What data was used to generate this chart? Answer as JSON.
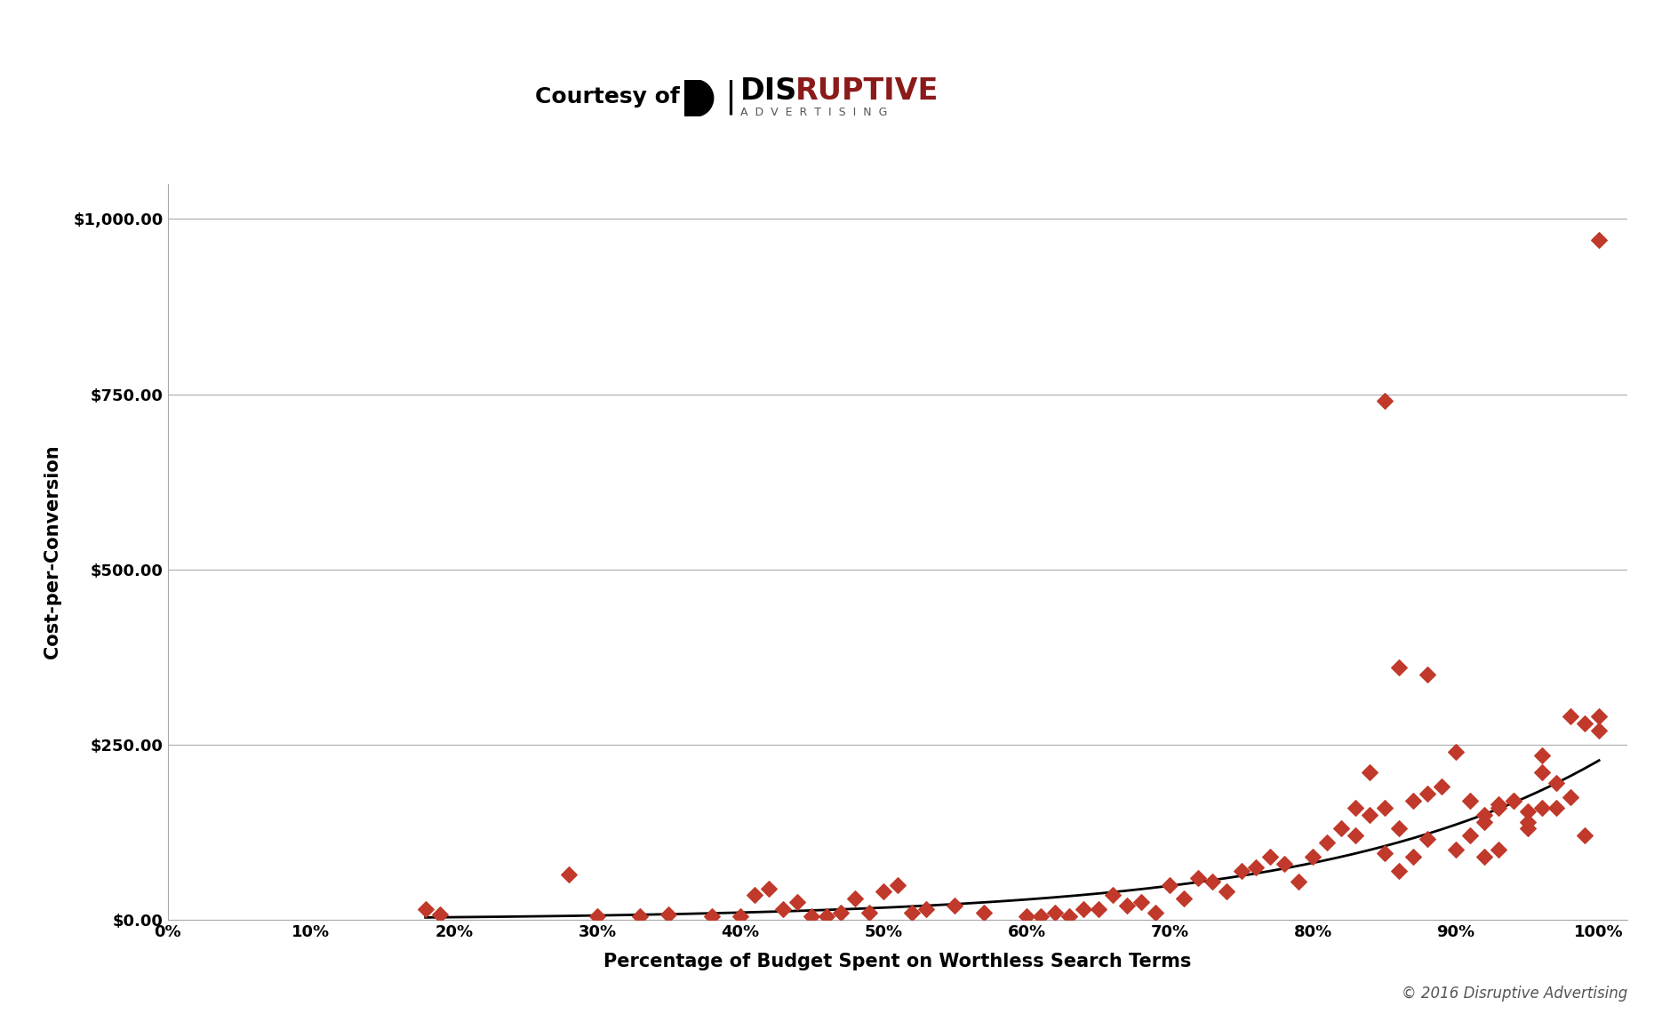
{
  "scatter_x": [
    0.18,
    0.19,
    0.28,
    0.3,
    0.33,
    0.35,
    0.38,
    0.4,
    0.41,
    0.42,
    0.43,
    0.44,
    0.45,
    0.46,
    0.47,
    0.48,
    0.49,
    0.5,
    0.51,
    0.52,
    0.53,
    0.55,
    0.57,
    0.6,
    0.61,
    0.62,
    0.63,
    0.64,
    0.65,
    0.66,
    0.67,
    0.68,
    0.69,
    0.7,
    0.71,
    0.72,
    0.73,
    0.74,
    0.75,
    0.76,
    0.77,
    0.78,
    0.79,
    0.8,
    0.81,
    0.82,
    0.83,
    0.84,
    0.85,
    0.86,
    0.87,
    0.88,
    0.89,
    0.9,
    0.91,
    0.92,
    0.93,
    0.94,
    0.95,
    0.96,
    0.97,
    0.98,
    0.99,
    1.0,
    0.85,
    0.86,
    0.88,
    0.9,
    0.91,
    0.92,
    0.93,
    0.94,
    0.95,
    0.96,
    0.97,
    0.98,
    0.99,
    1.0,
    0.83,
    0.84,
    0.85,
    0.86,
    0.87,
    0.88,
    0.92,
    0.93,
    0.95,
    0.96,
    1.0
  ],
  "scatter_y": [
    15,
    8,
    65,
    5,
    5,
    8,
    5,
    5,
    35,
    45,
    15,
    25,
    5,
    5,
    10,
    30,
    10,
    40,
    50,
    10,
    15,
    20,
    10,
    5,
    5,
    10,
    5,
    15,
    15,
    35,
    20,
    25,
    10,
    50,
    30,
    60,
    55,
    40,
    70,
    75,
    90,
    80,
    55,
    90,
    110,
    130,
    120,
    150,
    160,
    130,
    170,
    180,
    190,
    100,
    120,
    150,
    160,
    170,
    140,
    160,
    160,
    175,
    120,
    970,
    740,
    360,
    350,
    240,
    170,
    140,
    165,
    170,
    155,
    210,
    195,
    290,
    280,
    290,
    160,
    210,
    95,
    70,
    90,
    115,
    90,
    100,
    130,
    235,
    270
  ],
  "trend_x_start": 0.18,
  "trend_x_end": 1.0,
  "scatter_color": "#C0392B",
  "trend_color": "#000000",
  "marker": "D",
  "xlabel": "Percentage of Budget Spent on Worthless Search Terms",
  "ylabel": "Cost-per-Conversion",
  "yticks": [
    0,
    250,
    500,
    750,
    1000
  ],
  "ytick_labels": [
    "$0.00",
    "$250.00",
    "$500.00",
    "$750.00",
    "$1,000.00"
  ],
  "xticks": [
    0.0,
    0.1,
    0.2,
    0.3,
    0.4,
    0.5,
    0.6,
    0.7,
    0.8,
    0.9,
    1.0
  ],
  "xtick_labels": [
    "0%",
    "10%",
    "20%",
    "30%",
    "40%",
    "50%",
    "60%",
    "70%",
    "80%",
    "90%",
    "100%"
  ],
  "xlim": [
    0.0,
    1.02
  ],
  "ylim": [
    0,
    1050
  ],
  "copyright_text": "© 2016 Disruptive Advertising",
  "background_color": "#ffffff",
  "grid_color": "#aaaaaa",
  "font_color": "#000000",
  "dis_color": "#000000",
  "ruptive_color": "#8B1A1A",
  "advertising_color": "#555555",
  "separator_color": "#000000",
  "courtesy_text": "Courtesy of",
  "dis_text": "DIS",
  "ruptive_text": "RUPTIVE",
  "advertising_text": "ADVERTISING"
}
